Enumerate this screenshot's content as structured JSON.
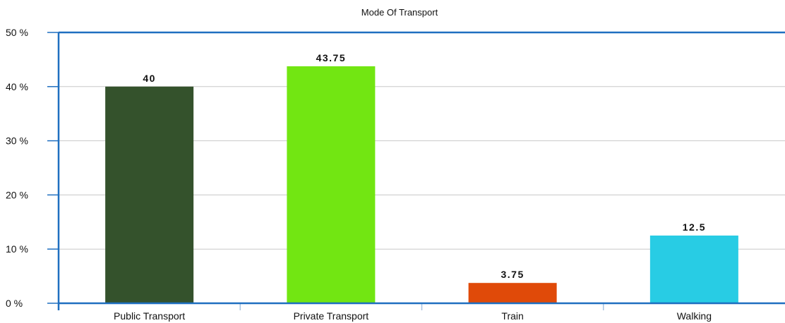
{
  "chart_data": {
    "type": "bar",
    "title": "Mode Of Transport",
    "xlabel": "",
    "ylabel": "",
    "categories": [
      "Public Transport",
      "Private Transport",
      "Train",
      "Walking"
    ],
    "values": [
      40,
      43.75,
      3.75,
      12.5
    ],
    "value_labels": [
      "40",
      "43.75",
      "3.75",
      "12.5"
    ],
    "bar_colors": [
      "#34522c",
      "#72e612",
      "#e04a09",
      "#28cce4"
    ],
    "ylim": [
      0,
      50
    ],
    "yticks": [
      0,
      10,
      20,
      30,
      40,
      50
    ],
    "ytick_labels": [
      "0 %",
      "10 %",
      "20 %",
      "30 %",
      "40 %",
      "50 %"
    ],
    "grid": true,
    "legend": "none",
    "colors": {
      "axis": "#1f6fc0",
      "grid": "#c8c8c8"
    }
  }
}
